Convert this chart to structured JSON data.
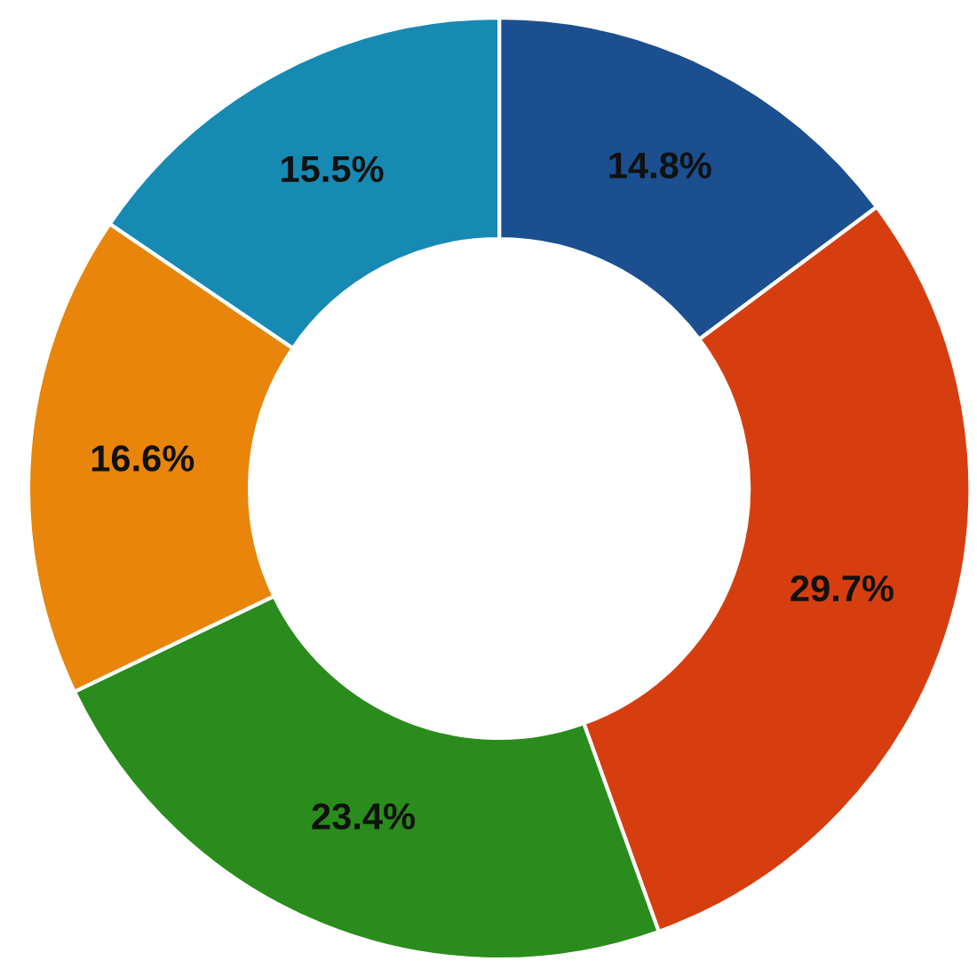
{
  "chart_data": {
    "type": "donut",
    "categories": [
      null,
      null,
      null,
      null,
      null
    ],
    "values": [
      14.8,
      29.7,
      23.4,
      16.6,
      15.5
    ],
    "colors": [
      "#1b4f8f",
      "#d63e10",
      "#2a8c1c",
      "#e8850a",
      "#168ab3"
    ],
    "value_labels": [
      "14.8%",
      "29.7%",
      "23.4%",
      "16.6%",
      "15.5%"
    ]
  }
}
